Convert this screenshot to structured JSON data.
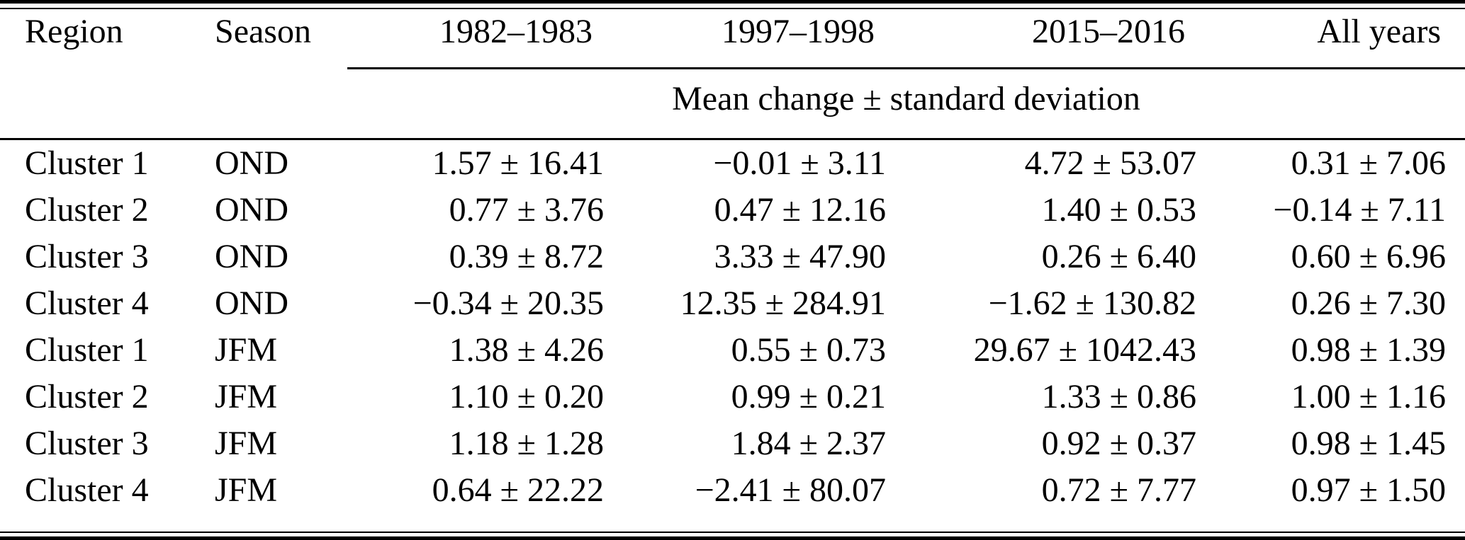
{
  "colors": {
    "background": "#ffffff",
    "text": "#000000",
    "rule": "#000000"
  },
  "table": {
    "column_headers": [
      "Region",
      "Season",
      "1982–1983",
      "1997–1998",
      "2015–2016",
      "All years"
    ],
    "subheader": "Mean change ± standard deviation",
    "rows": [
      [
        "Cluster 1",
        "OND",
        "1.57 ± 16.41",
        "−0.01 ± 3.11",
        "4.72 ± 53.07",
        "0.31 ± 7.06"
      ],
      [
        "Cluster 2",
        "OND",
        "0.77 ± 3.76",
        "0.47 ± 12.16",
        "1.40 ± 0.53",
        "−0.14 ± 7.11"
      ],
      [
        "Cluster 3",
        "OND",
        "0.39 ± 8.72",
        "3.33 ± 47.90",
        "0.26 ± 6.40",
        "0.60 ± 6.96"
      ],
      [
        "Cluster 4",
        "OND",
        "−0.34 ± 20.35",
        "12.35 ± 284.91",
        "−1.62 ± 130.82",
        "0.26 ± 7.30"
      ],
      [
        "Cluster 1",
        "JFM",
        "1.38 ± 4.26",
        "0.55 ± 0.73",
        "29.67 ± 1042.43",
        "0.98 ± 1.39"
      ],
      [
        "Cluster 2",
        "JFM",
        "1.10 ± 0.20",
        "0.99 ± 0.21",
        "1.33 ± 0.86",
        "1.00 ± 1.16"
      ],
      [
        "Cluster 3",
        "JFM",
        "1.18 ± 1.28",
        "1.84 ± 2.37",
        "0.92 ± 0.37",
        "0.98 ± 1.45"
      ],
      [
        "Cluster 4",
        "JFM",
        "0.64 ± 22.22",
        "−2.41 ± 80.07",
        "0.72 ± 7.77",
        "0.97 ± 1.50"
      ]
    ]
  }
}
